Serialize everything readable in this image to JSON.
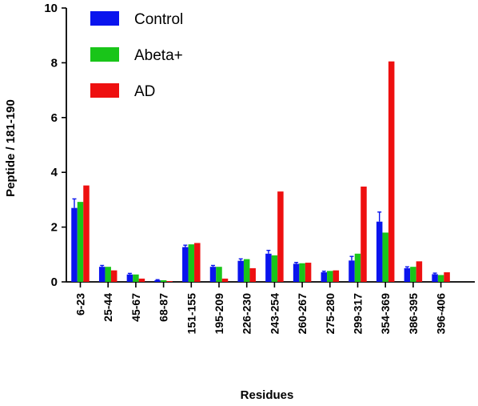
{
  "chart_data": {
    "type": "bar",
    "title": "",
    "xlabel": "Residues",
    "ylabel": "Peptide / 181-190",
    "ylim": [
      0,
      10
    ],
    "yticks": [
      0,
      2,
      4,
      6,
      8,
      10
    ],
    "grid": false,
    "legend_position": "top-left",
    "categories": [
      "6-23",
      "25-44",
      "45-67",
      "68-87",
      "151-155",
      "195-209",
      "226-230",
      "243-254",
      "260-267",
      "275-280",
      "299-317",
      "354-369",
      "386-395",
      "396-406"
    ],
    "series": [
      {
        "name": "Control",
        "color": "#0a14ee",
        "values": [
          2.7,
          0.55,
          0.27,
          0.06,
          1.27,
          0.55,
          0.77,
          1.03,
          0.66,
          0.35,
          0.78,
          2.2,
          0.5,
          0.28
        ],
        "errors": [
          0.33,
          0.05,
          0.04,
          0.02,
          0.07,
          0.05,
          0.07,
          0.12,
          0.05,
          0.04,
          0.15,
          0.35,
          0.05,
          0.04
        ]
      },
      {
        "name": "Abeta+",
        "color": "#19c519",
        "values": [
          2.92,
          0.55,
          0.27,
          0.06,
          1.37,
          0.55,
          0.83,
          0.97,
          0.68,
          0.4,
          1.03,
          1.8,
          0.55,
          0.25
        ]
      },
      {
        "name": "AD",
        "color": "#ee1010",
        "values": [
          3.52,
          0.42,
          0.12,
          0.03,
          1.42,
          0.12,
          0.5,
          3.3,
          0.7,
          0.42,
          3.48,
          8.05,
          0.75,
          0.35
        ]
      }
    ]
  }
}
